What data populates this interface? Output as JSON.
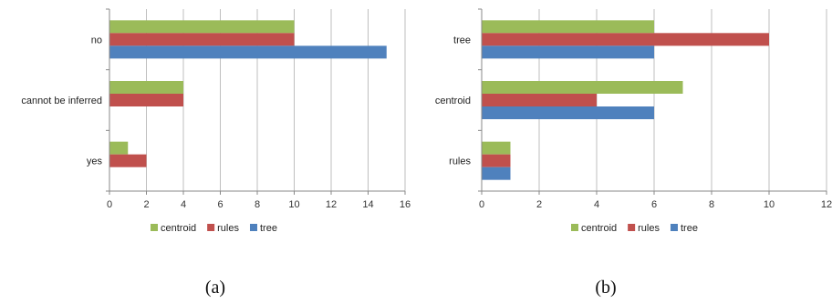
{
  "colors": {
    "centroid": "#9bbb59",
    "rules": "#c0504d",
    "tree": "#4f81bd",
    "grid": "#bfbfbf",
    "axis": "#888888"
  },
  "chart_data": [
    {
      "type": "bar",
      "orientation": "horizontal",
      "caption": "(a)",
      "categories": [
        "no",
        "cannot be inferred",
        "yes"
      ],
      "series": [
        {
          "name": "centroid",
          "values": [
            10,
            4,
            1
          ]
        },
        {
          "name": "rules",
          "values": [
            10,
            4,
            2
          ]
        },
        {
          "name": "tree",
          "values": [
            15,
            0,
            0
          ]
        }
      ],
      "xlim": [
        0,
        16
      ],
      "xticks": [
        "0",
        "2",
        "4",
        "6",
        "8",
        "10",
        "12",
        "14",
        "16"
      ],
      "grid": true,
      "legend": "bottom"
    },
    {
      "type": "bar",
      "orientation": "horizontal",
      "caption": "(b)",
      "categories": [
        "tree",
        "centroid",
        "rules"
      ],
      "series": [
        {
          "name": "centroid",
          "values": [
            6,
            7,
            1
          ]
        },
        {
          "name": "rules",
          "values": [
            10,
            4,
            1
          ]
        },
        {
          "name": "tree",
          "values": [
            6,
            6,
            1
          ]
        }
      ],
      "xlim": [
        0,
        12
      ],
      "xticks": [
        "0",
        "2",
        "4",
        "6",
        "8",
        "10",
        "12"
      ],
      "grid": true,
      "legend": "bottom"
    }
  ]
}
